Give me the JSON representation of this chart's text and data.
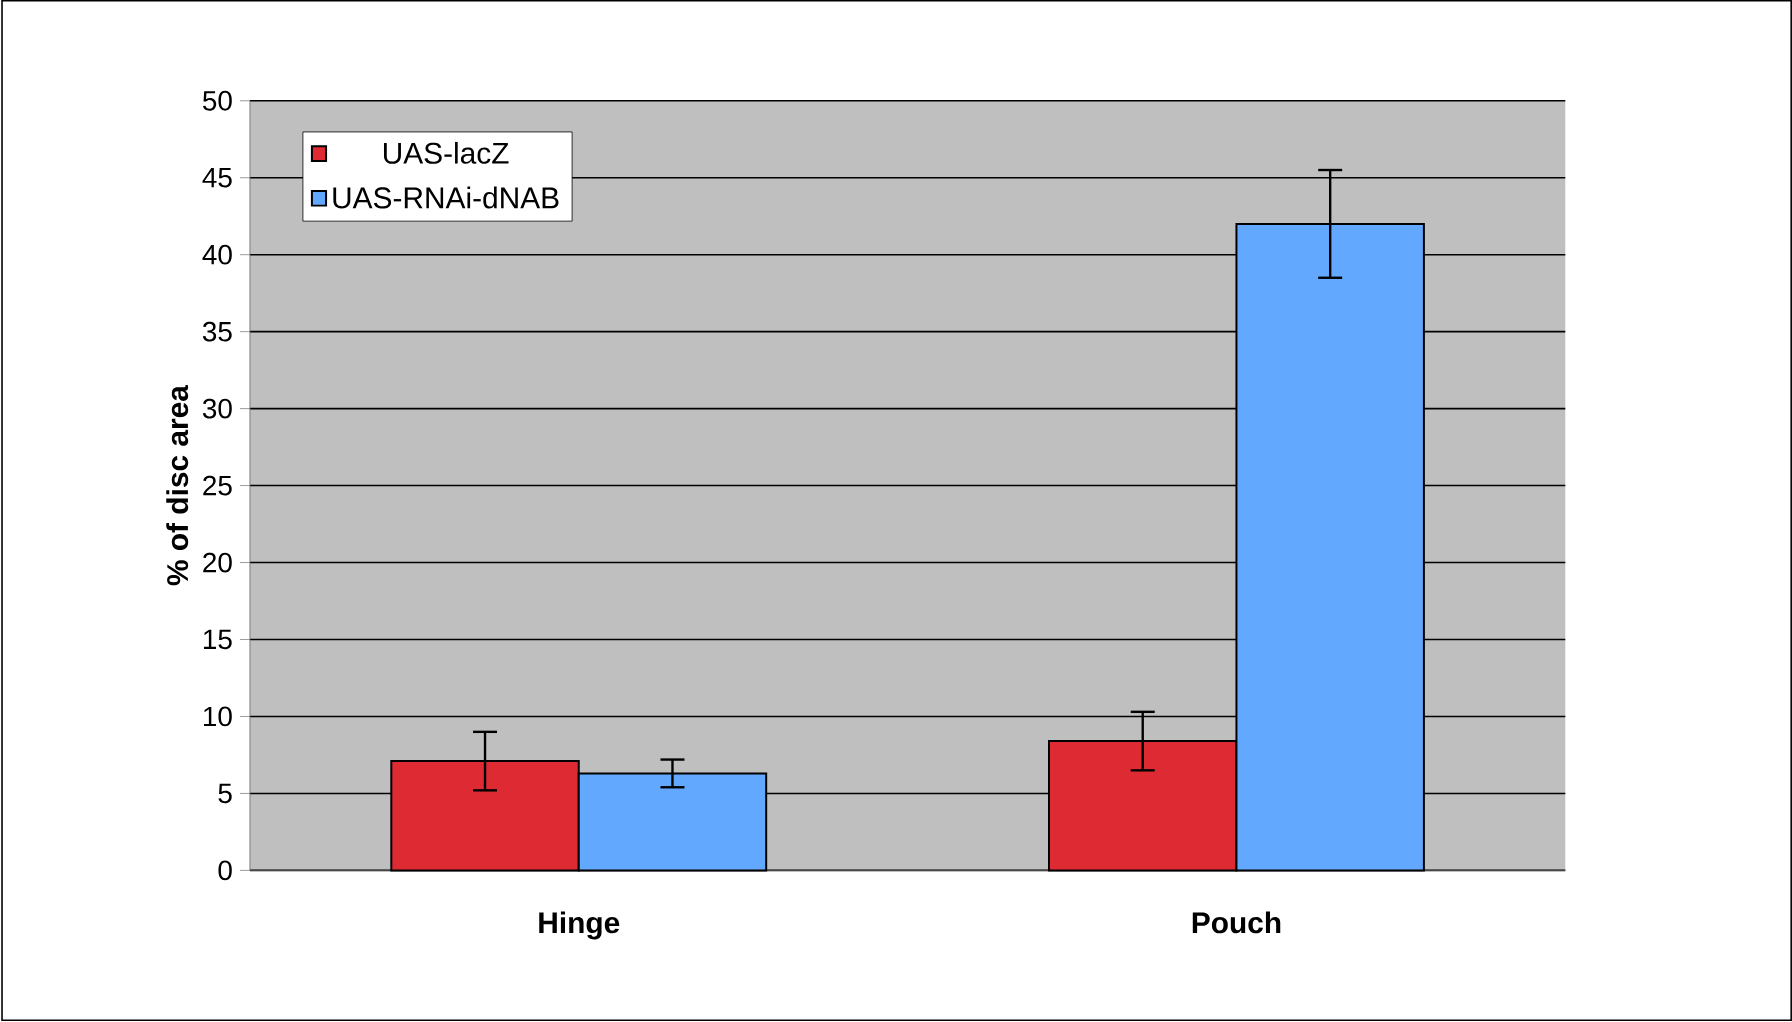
{
  "chart_data": {
    "type": "bar",
    "ylabel": "% of disc area",
    "categories": [
      "Hinge",
      "Pouch"
    ],
    "series": [
      {
        "name": "UAS-lacZ",
        "color": "#de2b33",
        "values": [
          7.1,
          8.4
        ],
        "errors": [
          1.9,
          1.9
        ]
      },
      {
        "name": "UAS-RNAi-dNAB",
        "color": "#62a8fe",
        "values": [
          6.3,
          42.0
        ],
        "errors": [
          0.9,
          3.5
        ]
      }
    ],
    "ylim": [
      0,
      50
    ],
    "yticks": [
      0,
      5,
      10,
      15,
      20,
      25,
      30,
      35,
      40,
      45,
      50
    ],
    "grid": "y",
    "legend": "top left"
  }
}
